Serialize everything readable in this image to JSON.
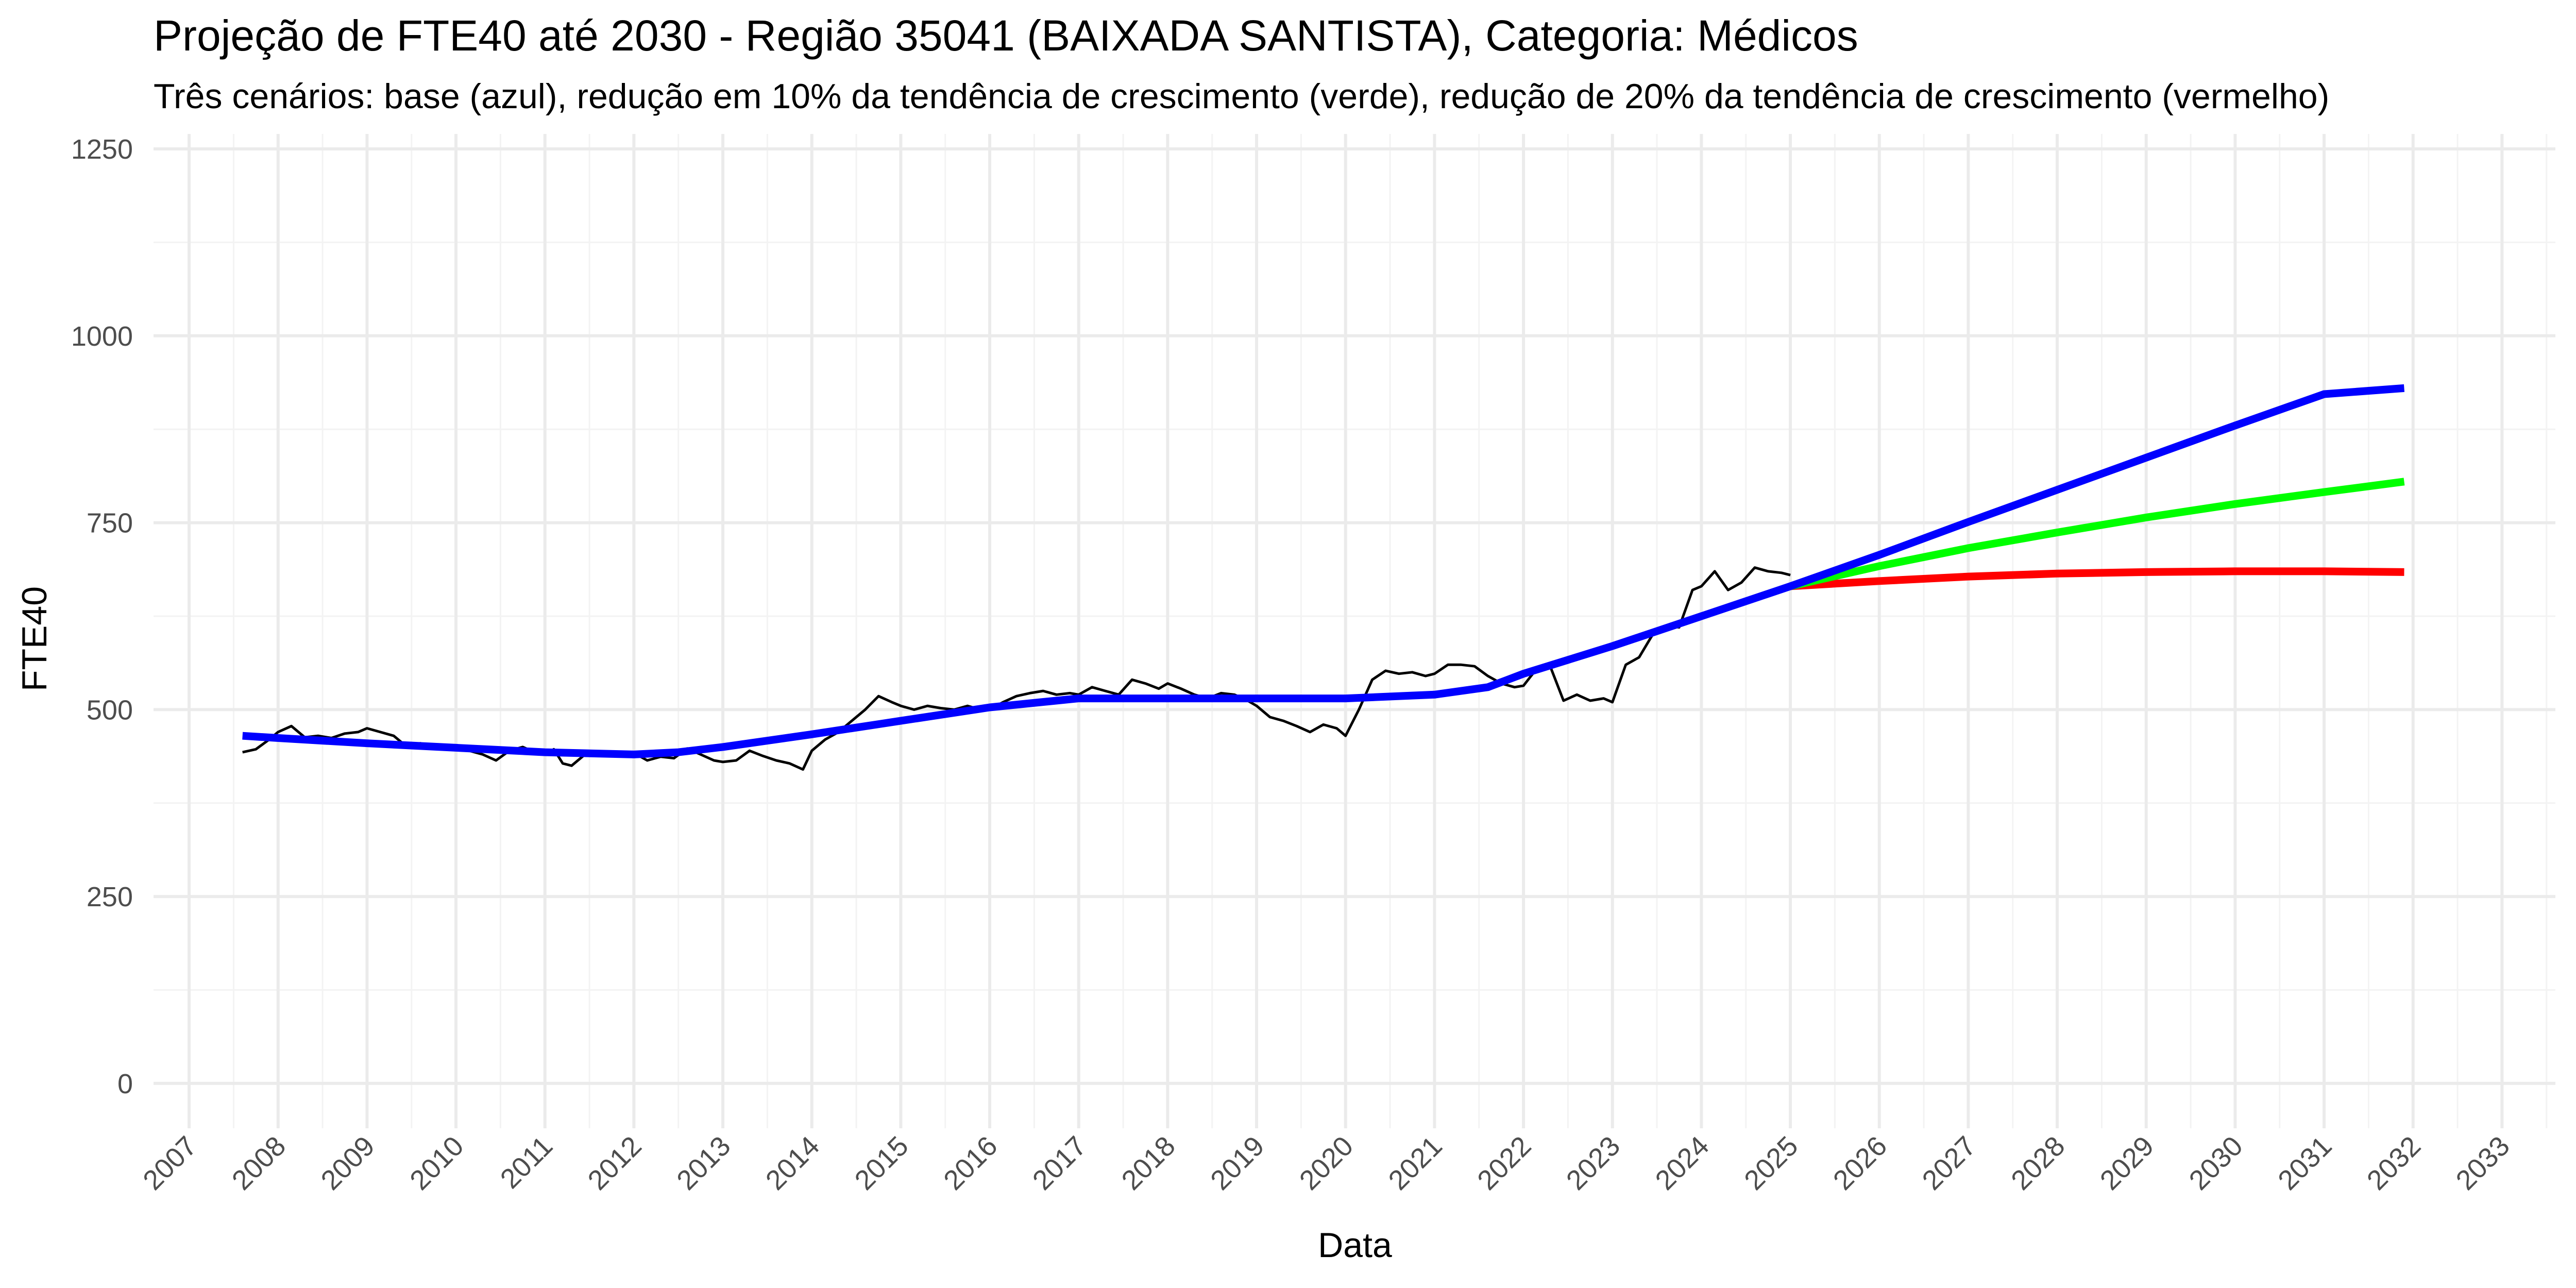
{
  "chart_data": {
    "type": "line",
    "title": "Projeção de FTE40 até 2030 - Região 35041 (BAIXADA SANTISTA), Categoria: Médicos",
    "subtitle": "Três cenários: base (azul), redução em 10% da tendência de crescimento (verde), redução de 20% da tendência de crescimento (vermelho)",
    "xlabel": "Data",
    "ylabel": "FTE40",
    "xlim": [
      2006.6,
      2033.6
    ],
    "ylim": [
      -60,
      1270
    ],
    "x_ticks": [
      "2007",
      "2008",
      "2009",
      "2010",
      "2011",
      "2012",
      "2013",
      "2014",
      "2015",
      "2016",
      "2017",
      "2018",
      "2019",
      "2020",
      "2021",
      "2022",
      "2023",
      "2024",
      "2025",
      "2026",
      "2027",
      "2028",
      "2029",
      "2030",
      "2031",
      "2032",
      "2033"
    ],
    "y_ticks": [
      0,
      250,
      500,
      750,
      1000,
      1250
    ],
    "grid": true,
    "legend": "none",
    "colors": {
      "observed": "#000000",
      "base": "#0000ff",
      "reduction_10": "#00ff00",
      "reduction_20": "#ff0000"
    },
    "series": [
      {
        "key": "observed",
        "x": [
          2007.6,
          2007.75,
          2007.9,
          2008.0,
          2008.15,
          2008.3,
          2008.45,
          2008.6,
          2008.75,
          2008.9,
          2009.0,
          2009.15,
          2009.3,
          2009.45,
          2009.6,
          2009.75,
          2009.9,
          2010.0,
          2010.15,
          2010.3,
          2010.45,
          2010.6,
          2010.75,
          2010.9,
          2011.0,
          2011.1,
          2011.2,
          2011.3,
          2011.45,
          2011.6,
          2011.75,
          2011.9,
          2012.0,
          2012.15,
          2012.3,
          2012.45,
          2012.6,
          2012.75,
          2012.9,
          2013.0,
          2013.15,
          2013.3,
          2013.45,
          2013.6,
          2013.75,
          2013.9,
          2014.0,
          2014.15,
          2014.3,
          2014.45,
          2014.6,
          2014.75,
          2014.9,
          2015.0,
          2015.15,
          2015.3,
          2015.45,
          2015.6,
          2015.75,
          2015.9,
          2016.0,
          2016.15,
          2016.3,
          2016.45,
          2016.6,
          2016.75,
          2016.9,
          2017.0,
          2017.15,
          2017.3,
          2017.45,
          2017.6,
          2017.75,
          2017.9,
          2018.0,
          2018.15,
          2018.3,
          2018.45,
          2018.6,
          2018.75,
          2018.9,
          2019.0,
          2019.15,
          2019.3,
          2019.45,
          2019.6,
          2019.75,
          2019.9,
          2020.0,
          2020.15,
          2020.3,
          2020.45,
          2020.6,
          2020.75,
          2020.9,
          2021.0,
          2021.15,
          2021.3,
          2021.45,
          2021.6,
          2021.75,
          2021.9,
          2022.0,
          2022.15,
          2022.3,
          2022.45,
          2022.6,
          2022.75,
          2022.9,
          2023.0,
          2023.15,
          2023.3,
          2023.45,
          2023.6,
          2023.75,
          2023.9,
          2024.0,
          2024.15,
          2024.3,
          2024.45,
          2024.6,
          2024.75,
          2024.9,
          2025.0
        ],
        "y": [
          443,
          447,
          460,
          470,
          478,
          463,
          465,
          462,
          468,
          470,
          475,
          470,
          465,
          450,
          455,
          450,
          448,
          446,
          445,
          440,
          432,
          445,
          450,
          442,
          440,
          447,
          428,
          425,
          440,
          440,
          438,
          440,
          442,
          432,
          437,
          435,
          448,
          440,
          432,
          430,
          432,
          445,
          438,
          432,
          428,
          420,
          445,
          460,
          470,
          485,
          500,
          518,
          510,
          505,
          500,
          505,
          502,
          500,
          505,
          500,
          500,
          510,
          518,
          522,
          525,
          520,
          522,
          520,
          530,
          525,
          520,
          540,
          535,
          528,
          535,
          528,
          520,
          515,
          522,
          520,
          512,
          505,
          490,
          485,
          478,
          470,
          480,
          475,
          465,
          500,
          540,
          552,
          548,
          550,
          545,
          548,
          560,
          560,
          558,
          545,
          535,
          530,
          532,
          555,
          558,
          512,
          520,
          512,
          515,
          510,
          560,
          570,
          600,
          612,
          610,
          660,
          665,
          685,
          660,
          670,
          690,
          685,
          683,
          680
        ]
      },
      {
        "key": "base",
        "x": [
          2007.6,
          2008.0,
          2009.0,
          2010.0,
          2011.0,
          2012.0,
          2012.5,
          2013.0,
          2014.0,
          2015.0,
          2016.0,
          2017.0,
          2018.0,
          2019.0,
          2020.0,
          2021.0,
          2021.6,
          2022.0,
          2023.0,
          2024.0,
          2025.0,
          2026.0,
          2027.0,
          2028.0,
          2029.0,
          2030.0,
          2031.0,
          2031.9
        ],
        "y": [
          465,
          462,
          455,
          449,
          443,
          440,
          443,
          450,
          467,
          485,
          503,
          515,
          515,
          515,
          515,
          520,
          530,
          548,
          585,
          625,
          665,
          707,
          751,
          794,
          837,
          880,
          922,
          930
        ]
      },
      {
        "key": "reduction_10",
        "x": [
          2025.0,
          2026.0,
          2027.0,
          2028.0,
          2029.0,
          2030.0,
          2031.0,
          2031.9
        ],
        "y": [
          665,
          692,
          716,
          737,
          757,
          775,
          791,
          805
        ]
      },
      {
        "key": "reduction_20",
        "x": [
          2025.0,
          2026.0,
          2027.0,
          2028.0,
          2029.0,
          2030.0,
          2031.0,
          2031.9
        ],
        "y": [
          665,
          672,
          678,
          682,
          684,
          685,
          685,
          684
        ]
      }
    ]
  }
}
